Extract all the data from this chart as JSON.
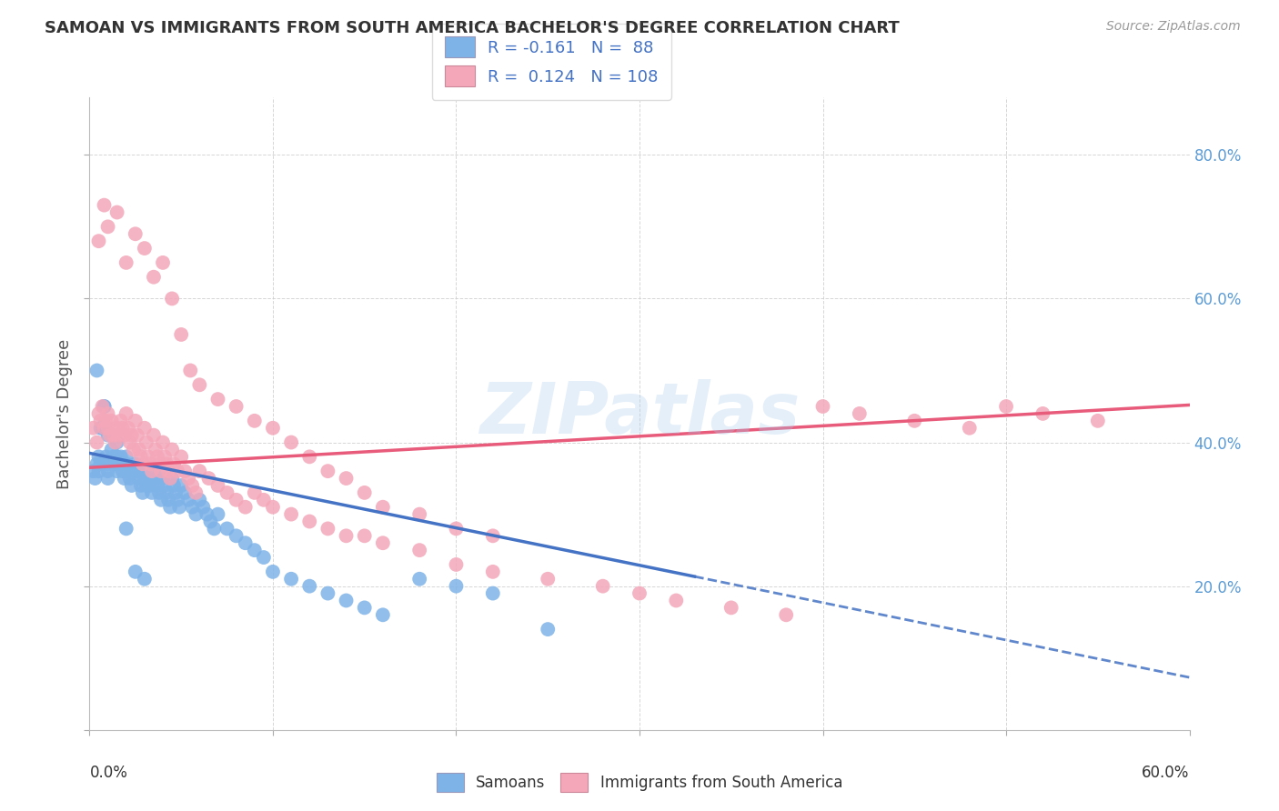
{
  "title": "SAMOAN VS IMMIGRANTS FROM SOUTH AMERICA BACHELOR'S DEGREE CORRELATION CHART",
  "source": "Source: ZipAtlas.com",
  "ylabel": "Bachelor's Degree",
  "xlim": [
    0.0,
    0.6
  ],
  "ylim": [
    0.0,
    0.88
  ],
  "legend_blue_r": "-0.161",
  "legend_blue_n": "88",
  "legend_pink_r": "0.124",
  "legend_pink_n": "108",
  "blue_color": "#7EB3E8",
  "pink_color": "#F4A7B9",
  "blue_line_color": "#4472C4",
  "pink_line_color": "#E85B7A",
  "watermark": "ZIPatlas",
  "blue_scatter_x": [
    0.002,
    0.003,
    0.004,
    0.005,
    0.005,
    0.006,
    0.007,
    0.008,
    0.009,
    0.01,
    0.01,
    0.01,
    0.012,
    0.013,
    0.014,
    0.015,
    0.015,
    0.016,
    0.017,
    0.018,
    0.019,
    0.02,
    0.02,
    0.021,
    0.022,
    0.023,
    0.024,
    0.025,
    0.026,
    0.027,
    0.028,
    0.029,
    0.03,
    0.03,
    0.031,
    0.032,
    0.033,
    0.034,
    0.035,
    0.036,
    0.037,
    0.038,
    0.039,
    0.04,
    0.041,
    0.042,
    0.043,
    0.044,
    0.045,
    0.046,
    0.047,
    0.048,
    0.049,
    0.05,
    0.052,
    0.054,
    0.056,
    0.058,
    0.06,
    0.062,
    0.064,
    0.066,
    0.068,
    0.07,
    0.075,
    0.08,
    0.085,
    0.09,
    0.095,
    0.1,
    0.11,
    0.12,
    0.13,
    0.14,
    0.15,
    0.16,
    0.18,
    0.2,
    0.22,
    0.25,
    0.004,
    0.006,
    0.008,
    0.01,
    0.015,
    0.02,
    0.025,
    0.03
  ],
  "blue_scatter_y": [
    0.36,
    0.35,
    0.37,
    0.38,
    0.36,
    0.37,
    0.42,
    0.45,
    0.38,
    0.37,
    0.36,
    0.35,
    0.39,
    0.38,
    0.37,
    0.38,
    0.36,
    0.37,
    0.38,
    0.36,
    0.35,
    0.38,
    0.37,
    0.36,
    0.35,
    0.34,
    0.36,
    0.37,
    0.36,
    0.35,
    0.34,
    0.33,
    0.36,
    0.35,
    0.34,
    0.35,
    0.34,
    0.33,
    0.36,
    0.35,
    0.34,
    0.33,
    0.32,
    0.35,
    0.34,
    0.33,
    0.32,
    0.31,
    0.35,
    0.34,
    0.33,
    0.32,
    0.31,
    0.34,
    0.33,
    0.32,
    0.31,
    0.3,
    0.32,
    0.31,
    0.3,
    0.29,
    0.28,
    0.3,
    0.28,
    0.27,
    0.26,
    0.25,
    0.24,
    0.22,
    0.21,
    0.2,
    0.19,
    0.18,
    0.17,
    0.16,
    0.21,
    0.2,
    0.19,
    0.14,
    0.5,
    0.42,
    0.45,
    0.41,
    0.4,
    0.28,
    0.22,
    0.21
  ],
  "pink_scatter_x": [
    0.002,
    0.004,
    0.005,
    0.006,
    0.007,
    0.008,
    0.009,
    0.01,
    0.01,
    0.011,
    0.012,
    0.013,
    0.014,
    0.015,
    0.016,
    0.017,
    0.018,
    0.019,
    0.02,
    0.021,
    0.022,
    0.023,
    0.024,
    0.025,
    0.026,
    0.027,
    0.028,
    0.029,
    0.03,
    0.031,
    0.032,
    0.033,
    0.034,
    0.035,
    0.036,
    0.037,
    0.038,
    0.039,
    0.04,
    0.041,
    0.042,
    0.043,
    0.044,
    0.045,
    0.046,
    0.048,
    0.05,
    0.052,
    0.054,
    0.056,
    0.058,
    0.06,
    0.065,
    0.07,
    0.075,
    0.08,
    0.085,
    0.09,
    0.095,
    0.1,
    0.11,
    0.12,
    0.13,
    0.14,
    0.15,
    0.16,
    0.18,
    0.2,
    0.22,
    0.25,
    0.28,
    0.3,
    0.32,
    0.35,
    0.38,
    0.4,
    0.42,
    0.45,
    0.48,
    0.5,
    0.52,
    0.55,
    0.005,
    0.008,
    0.01,
    0.015,
    0.02,
    0.025,
    0.03,
    0.035,
    0.04,
    0.045,
    0.05,
    0.055,
    0.06,
    0.07,
    0.08,
    0.09,
    0.1,
    0.11,
    0.12,
    0.13,
    0.14,
    0.15,
    0.16,
    0.18,
    0.2,
    0.22
  ],
  "pink_scatter_y": [
    0.42,
    0.4,
    0.44,
    0.43,
    0.45,
    0.42,
    0.43,
    0.44,
    0.42,
    0.41,
    0.43,
    0.41,
    0.4,
    0.42,
    0.41,
    0.43,
    0.42,
    0.41,
    0.44,
    0.42,
    0.4,
    0.41,
    0.39,
    0.43,
    0.41,
    0.39,
    0.38,
    0.37,
    0.42,
    0.4,
    0.38,
    0.37,
    0.36,
    0.41,
    0.39,
    0.38,
    0.37,
    0.36,
    0.4,
    0.38,
    0.37,
    0.36,
    0.35,
    0.39,
    0.37,
    0.36,
    0.38,
    0.36,
    0.35,
    0.34,
    0.33,
    0.36,
    0.35,
    0.34,
    0.33,
    0.32,
    0.31,
    0.33,
    0.32,
    0.31,
    0.3,
    0.29,
    0.28,
    0.27,
    0.27,
    0.26,
    0.25,
    0.23,
    0.22,
    0.21,
    0.2,
    0.19,
    0.18,
    0.17,
    0.16,
    0.45,
    0.44,
    0.43,
    0.42,
    0.45,
    0.44,
    0.43,
    0.68,
    0.73,
    0.7,
    0.72,
    0.65,
    0.69,
    0.67,
    0.63,
    0.65,
    0.6,
    0.55,
    0.5,
    0.48,
    0.46,
    0.45,
    0.43,
    0.42,
    0.4,
    0.38,
    0.36,
    0.35,
    0.33,
    0.31,
    0.3,
    0.28,
    0.27
  ],
  "blue_trend_intercept": 0.385,
  "blue_trend_slope": -0.52,
  "pink_trend_intercept": 0.365,
  "pink_trend_slope": 0.145
}
